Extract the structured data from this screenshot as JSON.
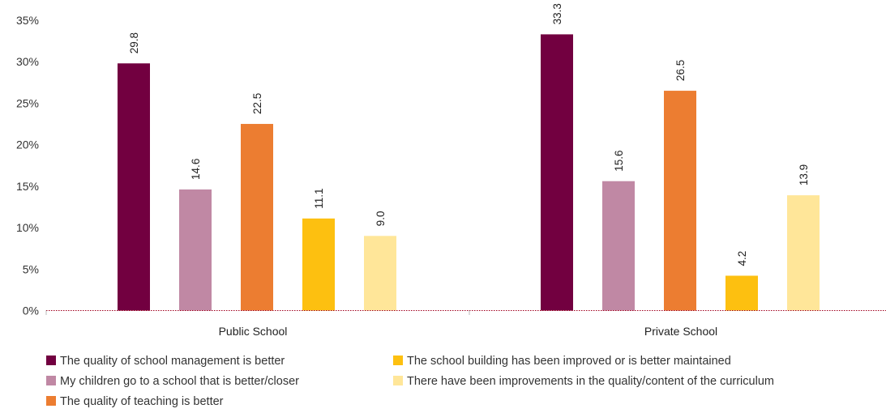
{
  "chart_data": {
    "type": "bar",
    "categories": [
      "Public School",
      "Private School"
    ],
    "series": [
      {
        "name": "The quality of school management is better",
        "values": [
          29.8,
          33.3
        ],
        "color": "#720040"
      },
      {
        "name": "My children go to a school that is better/closer",
        "values": [
          14.6,
          15.6
        ],
        "color": "#c088a4"
      },
      {
        "name": "The quality of teaching is better",
        "values": [
          22.5,
          26.5
        ],
        "color": "#ec7d31"
      },
      {
        "name": "The school building has been improved or is better maintained",
        "values": [
          11.1,
          4.2
        ],
        "color": "#fdc010"
      },
      {
        "name": "There have been improvements in the quality/content of the curriculum",
        "values": [
          9.0,
          13.9
        ],
        "color": "#ffe699"
      }
    ],
    "value_labels": [
      [
        "29.8",
        "33.3"
      ],
      [
        "14.6",
        "15.6"
      ],
      [
        "22.5",
        "26.5"
      ],
      [
        "11.1",
        "4.2"
      ],
      [
        "9.0",
        "13.9"
      ]
    ],
    "ylim": [
      0,
      35
    ],
    "yticks": [
      0,
      5,
      10,
      15,
      20,
      25,
      30,
      35
    ],
    "ytick_labels": [
      "0%",
      "5%",
      "10%",
      "15%",
      "20%",
      "25%",
      "30%",
      "35%"
    ],
    "baseline_color": "#a0001f",
    "grid": false,
    "legend": "bottom-left"
  }
}
